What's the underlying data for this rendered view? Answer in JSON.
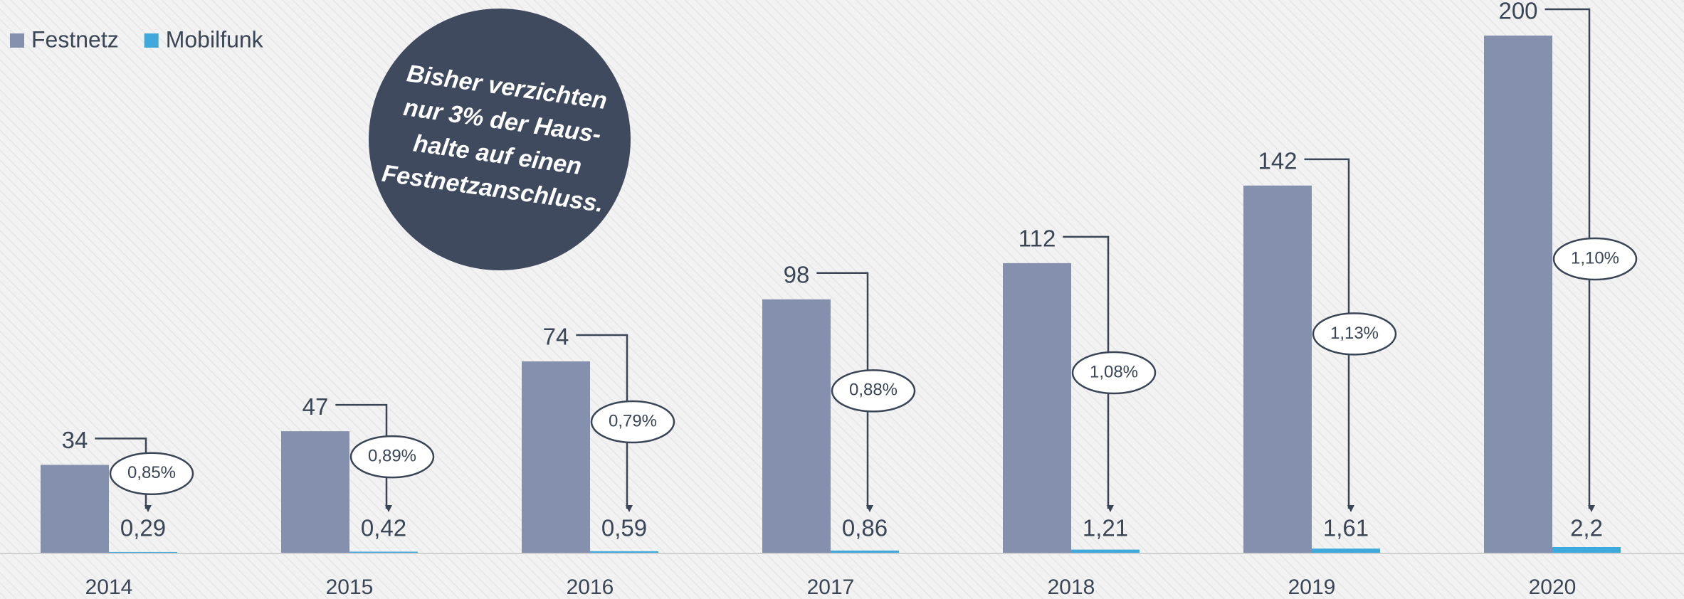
{
  "chart_data": {
    "type": "bar",
    "categories": [
      "2014",
      "2015",
      "2016",
      "2017",
      "2018",
      "2019",
      "2020"
    ],
    "series": [
      {
        "name": "Festnetz",
        "color": "#8490ad",
        "values": [
          34,
          47,
          74,
          98,
          112,
          142,
          200
        ]
      },
      {
        "name": "Mobilfunk",
        "color": "#3fa9db",
        "values": [
          0.29,
          0.42,
          0.59,
          0.86,
          1.21,
          1.61,
          2.2
        ],
        "value_labels": [
          "0,29",
          "0,42",
          "0,59",
          "0,86",
          "1,21",
          "1,61",
          "2,2"
        ]
      }
    ],
    "annotations": [
      "0,85%",
      "0,89%",
      "0,79%",
      "0,88%",
      "1,08%",
      "1,13%",
      "1,10%"
    ],
    "callout": [
      "Bisher verzichten",
      "nur 3% der Haus-",
      "halte auf einen",
      "Festnetzanschluss."
    ],
    "legend": "top-left"
  }
}
